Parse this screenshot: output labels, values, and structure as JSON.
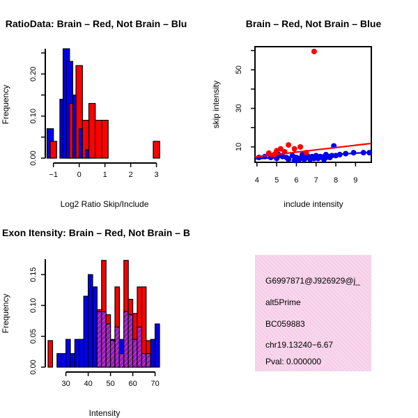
{
  "colors": {
    "red": "#ff0000",
    "blue": "#0000ee",
    "overlap": "#9b1ab8",
    "info_bg": "#f8d6ec",
    "pval": "#b00000"
  },
  "chart_data": [
    {
      "type": "bar",
      "title": "RatioData: Brain – Red, Not Brain – Blu",
      "xlabel": "Log2 Ratio Skip/Include",
      "ylabel": "Frequency",
      "x_ticks": [
        "−1",
        "0",
        "1",
        "2",
        "3"
      ],
      "y_ticks": [
        "0.00",
        "0.10",
        "0.20"
      ],
      "xlim": [
        -1.1,
        3.2
      ],
      "ylim": [
        0,
        0.26
      ],
      "bin_width": 0.25,
      "series": [
        {
          "name": "Not Brain",
          "color": "blue",
          "bins": [
            {
              "x": -1.125,
              "v": 0.07
            },
            {
              "x": -0.625,
              "v": 0.14
            },
            {
              "x": -0.5,
              "v": 0.26
            },
            {
              "x": -0.375,
              "v": 0.23
            },
            {
              "x": -0.125,
              "v": 0.15
            },
            {
              "x": 0.125,
              "v": 0.07
            },
            {
              "x": 0.375,
              "v": 0.02
            }
          ]
        },
        {
          "name": "Brain",
          "color": "red",
          "bins": [
            {
              "x": -1.0,
              "v": 0.04
            },
            {
              "x": -0.25,
              "v": 0.13
            },
            {
              "x": 0.0,
              "v": 0.22
            },
            {
              "x": 0.25,
              "v": 0.09
            },
            {
              "x": 0.5,
              "v": 0.13
            },
            {
              "x": 0.75,
              "v": 0.09
            },
            {
              "x": 1.0,
              "v": 0.09
            },
            {
              "x": 3.0,
              "v": 0.04
            }
          ]
        }
      ]
    },
    {
      "type": "scatter",
      "title": "Brain – Red, Not Brain – Blue",
      "xlabel": "include intensity",
      "ylabel": "skip intensity",
      "x_ticks": [
        "4",
        "5",
        "6",
        "7",
        "8",
        "9"
      ],
      "y_ticks": [
        "10",
        "30",
        "50"
      ],
      "xlim": [
        3.9,
        9.8
      ],
      "ylim": [
        2,
        62
      ],
      "series": [
        {
          "name": "Brain",
          "color": "red",
          "points": [
            [
              4.6,
              6.8
            ],
            [
              4.9,
              6.2
            ],
            [
              5.0,
              8.0
            ],
            [
              5.2,
              9.0
            ],
            [
              5.6,
              11.0
            ],
            [
              5.9,
              9.0
            ],
            [
              6.2,
              10.0
            ],
            [
              6.5,
              7.0
            ],
            [
              6.9,
              59.5
            ],
            [
              4.8,
              5.5
            ],
            [
              5.4,
              7.5
            ]
          ],
          "fit": [
            [
              3.9,
              4.8
            ],
            [
              9.8,
              11.8
            ]
          ]
        },
        {
          "name": "Not Brain",
          "color": "blue",
          "points": [
            [
              4.1,
              4.5
            ],
            [
              4.4,
              5.0
            ],
            [
              4.7,
              4.5
            ],
            [
              5.0,
              4.0
            ],
            [
              5.1,
              6.0
            ],
            [
              5.3,
              5.0
            ],
            [
              5.5,
              4.5
            ],
            [
              5.6,
              3.5
            ],
            [
              5.8,
              5.5
            ],
            [
              6.0,
              4.5
            ],
            [
              6.1,
              3.0
            ],
            [
              6.2,
              4.0
            ],
            [
              6.3,
              6.0
            ],
            [
              6.4,
              3.5
            ],
            [
              6.5,
              4.5
            ],
            [
              6.6,
              5.0
            ],
            [
              6.7,
              3.5
            ],
            [
              6.9,
              4.0
            ],
            [
              7.0,
              5.5
            ],
            [
              7.1,
              4.0
            ],
            [
              7.2,
              5.0
            ],
            [
              7.3,
              4.5
            ],
            [
              7.4,
              3.5
            ],
            [
              7.5,
              4.5
            ],
            [
              7.6,
              5.0
            ],
            [
              7.7,
              4.5
            ],
            [
              7.8,
              5.5
            ],
            [
              7.9,
              10.5
            ],
            [
              8.0,
              5.5
            ],
            [
              8.2,
              6.0
            ],
            [
              8.5,
              6.5
            ],
            [
              8.9,
              7.0
            ],
            [
              9.4,
              7.0
            ],
            [
              9.7,
              7.0
            ],
            [
              5.9,
              3.0
            ],
            [
              6.8,
              5.0
            ],
            [
              7.5,
              6.0
            ]
          ],
          "fit": [
            [
              3.9,
              3.8
            ],
            [
              9.8,
              7.2
            ]
          ]
        }
      ]
    },
    {
      "type": "bar",
      "title": "Exon Itensity: Brain – Red, Not Brain – B",
      "xlabel": "Intensity",
      "ylabel": "Frequency",
      "x_ticks": [
        "30",
        "40",
        "50",
        "60",
        "70"
      ],
      "y_ticks": [
        "0.00",
        "0.05",
        "0.10",
        "0.15"
      ],
      "xlim": [
        22,
        72
      ],
      "ylim": [
        0,
        0.175
      ],
      "bin_width": 2,
      "series": [
        {
          "name": "Not Brain",
          "color": "blue",
          "bins": [
            {
              "x": 27,
              "v": 0.022
            },
            {
              "x": 29,
              "v": 0.022
            },
            {
              "x": 31,
              "v": 0.045
            },
            {
              "x": 33,
              "v": 0.022
            },
            {
              "x": 35,
              "v": 0.045
            },
            {
              "x": 37,
              "v": 0.045
            },
            {
              "x": 39,
              "v": 0.115
            },
            {
              "x": 41,
              "v": 0.15
            },
            {
              "x": 43,
              "v": 0.13
            },
            {
              "x": 45,
              "v": 0.09
            },
            {
              "x": 47,
              "v": 0.09
            },
            {
              "x": 49,
              "v": 0.07
            },
            {
              "x": 51,
              "v": 0.045
            },
            {
              "x": 53,
              "v": 0.065
            },
            {
              "x": 55,
              "v": 0.045
            },
            {
              "x": 57,
              "v": 0.09
            },
            {
              "x": 59,
              "v": 0.085
            },
            {
              "x": 61,
              "v": 0.045
            },
            {
              "x": 63,
              "v": 0.065
            },
            {
              "x": 65,
              "v": 0.022
            },
            {
              "x": 67,
              "v": 0.022
            },
            {
              "x": 69,
              "v": 0.045
            },
            {
              "x": 71,
              "v": 0.07
            }
          ]
        },
        {
          "name": "Brain",
          "color": "red",
          "bins": [
            {
              "x": 23,
              "v": 0.043
            },
            {
              "x": 45,
              "v": 0.093
            },
            {
              "x": 47,
              "v": 0.173
            },
            {
              "x": 49,
              "v": 0.085
            },
            {
              "x": 51,
              "v": 0.043
            },
            {
              "x": 53,
              "v": 0.13
            },
            {
              "x": 55,
              "v": 0.022
            },
            {
              "x": 57,
              "v": 0.173
            },
            {
              "x": 59,
              "v": 0.11
            },
            {
              "x": 61,
              "v": 0.087
            },
            {
              "x": 63,
              "v": 0.13
            },
            {
              "x": 65,
              "v": 0.13
            },
            {
              "x": 67,
              "v": 0.043
            }
          ]
        }
      ]
    }
  ],
  "info": {
    "probeset": "G6997871@J926929@j_",
    "event_type": "alt5Prime",
    "accession": "BC059883",
    "location": "chr19.13240−6.67",
    "pval": "Pval: 0.000000"
  }
}
